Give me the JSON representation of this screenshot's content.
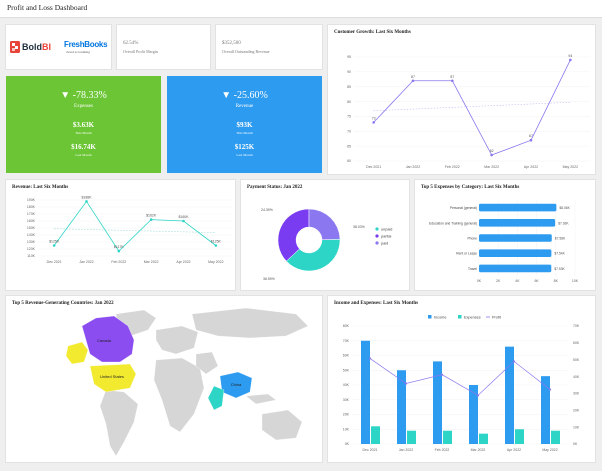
{
  "header": {
    "title": "Profit and Loss Dashboard"
  },
  "brand": {
    "bold": "Bold",
    "bold_bi": "BI",
    "fresh": "FreshBooks",
    "fresh_sub": "cloud accounting"
  },
  "metrics": [
    {
      "value": "62.54%",
      "label": "Overall Profit Margin"
    },
    {
      "value": "$352,500",
      "label": "Overall Outstanding Revenue"
    }
  ],
  "kpis": {
    "expenses": {
      "arrow": "▼",
      "percent": "-78.33%",
      "label": "Expenses",
      "this_month": "$3.63K",
      "this_month_label": "This Month",
      "last_month": "$16.74K",
      "last_month_label": "Last Month",
      "color": "#6bc534"
    },
    "revenue": {
      "arrow": "▼",
      "percent": "-25.60%",
      "label": "Revenue",
      "this_month": "$93K",
      "this_month_label": "This Month",
      "last_month": "$125K",
      "last_month_label": "Last Month",
      "color": "#2d9bf0"
    }
  },
  "customer_growth": {
    "chart_data": {
      "type": "line",
      "title": "Customer Growth: Last Six Months",
      "categories": [
        "Dec 2021",
        "Jan 2022",
        "Feb 2022",
        "Mar 2022",
        "Apr 2022",
        "May 2022"
      ],
      "values": [
        73,
        87,
        87,
        62,
        67,
        94
      ],
      "data_labels": [
        "73",
        "87",
        "87",
        "62",
        "67",
        "94"
      ],
      "ylim": [
        60,
        95
      ],
      "yticks": [
        "95",
        "90",
        "85",
        "80",
        "75",
        "70",
        "65",
        "60"
      ],
      "trendline": true
    }
  },
  "revenue_chart": {
    "chart_data": {
      "type": "line",
      "title": "Revenue: Last Six Months",
      "categories": [
        "Dec 2021",
        "Jan 2022",
        "Feb 2022",
        "Mar 2022",
        "Apr 2022",
        "May 2022"
      ],
      "values": [
        125,
        188,
        117,
        162,
        160,
        125
      ],
      "data_labels": [
        "$125K",
        "$188K",
        "$117K",
        "$162K",
        "$160K",
        "$125K"
      ],
      "ylim": [
        110,
        190
      ],
      "yticks": [
        "190K",
        "180K",
        "170K",
        "160K",
        "150K",
        "140K",
        "130K",
        "120K",
        "110K"
      ],
      "trendline": true
    }
  },
  "payment_status": {
    "chart_data": {
      "type": "pie",
      "title": "Payment Status: Jan 2022",
      "categories": [
        "unpaid",
        "partial",
        "paid"
      ],
      "values": [
        38.03,
        36.59,
        24.39
      ],
      "data_labels": [
        "38.03%",
        "36.59%",
        "24.39%"
      ],
      "colors": [
        "#2dd5c6",
        "#7a3cf0",
        "#8b77ef"
      ]
    }
  },
  "top_expenses": {
    "chart_data": {
      "type": "bar",
      "title": "Top 5 Expenses by Category: Last Six Months",
      "categories": [
        "Personal (general)",
        "Education and Training (general)",
        "Phone",
        "Rent or Lease",
        "Travel"
      ],
      "values": [
        8.06,
        7.93,
        7.58,
        7.54,
        7.53
      ],
      "data_labels": [
        "$8.06K",
        "$7.93K",
        "$7.58K",
        "$7.54K",
        "$7.53K"
      ],
      "xlim": [
        0,
        10
      ],
      "xticks": [
        "0K",
        "2K",
        "4K",
        "6K",
        "8K",
        "10K"
      ]
    }
  },
  "countries": {
    "title": "Top 5 Revenue-Generating Countries: Jan 2022",
    "labels": [
      "Canada",
      "United States",
      "China"
    ]
  },
  "income_expenses": {
    "chart_data": {
      "type": "bar",
      "title": "Income and Expenses: Last Six Months",
      "categories": [
        "Dec 2021",
        "Jan 2022",
        "Feb 2022",
        "Mar 2022",
        "Apr 2022",
        "May 2022"
      ],
      "series": [
        {
          "name": "Income",
          "values": [
            70,
            50,
            56,
            40,
            66,
            46
          ],
          "color": "#2d9bf0"
        },
        {
          "name": "Expenses",
          "values": [
            12,
            9,
            9,
            7,
            10,
            9
          ],
          "color": "#2dd5c6"
        },
        {
          "name": "Profit",
          "values": [
            58,
            41,
            47,
            33,
            56,
            37
          ],
          "color": "#8b77ef"
        }
      ],
      "ylim": [
        0,
        80
      ],
      "yticks": [
        "80K",
        "70K",
        "60K",
        "50K",
        "40K",
        "30K",
        "20K",
        "10K",
        "0K"
      ],
      "y2ticks": [
        "70K",
        "60K",
        "50K",
        "40K",
        "30K",
        "20K",
        "10K",
        "0K"
      ]
    }
  }
}
